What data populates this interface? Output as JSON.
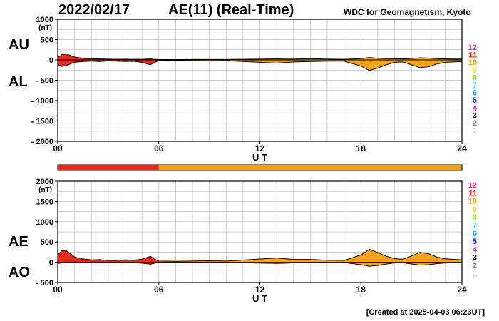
{
  "header": {
    "date": "2022/02/17",
    "title": "AE(11) (Real-Time)",
    "source": "WDC for Geomagnetism, Kyoto"
  },
  "footer": {
    "created": "[Created at 2025-04-03 06:23UT]"
  },
  "colors": {
    "red": "#e8291c",
    "orange": "#f7a21b",
    "legend": [
      "#e8368c",
      "#e8291c",
      "#f7a21b",
      "#f2e33a",
      "#9fe83a",
      "#3ae8c8",
      "#3aa0e8",
      "#1c2ad0",
      "#c23ae8",
      "#000000",
      "#888888",
      "#c8c8c8"
    ]
  },
  "legend_levels": [
    "12",
    "11",
    "10",
    "9",
    "8",
    "7",
    "6",
    "5",
    "4",
    "3",
    "2",
    "1"
  ],
  "status_bar": {
    "segments": [
      {
        "from": 0,
        "to": 6,
        "level": 11
      },
      {
        "from": 6,
        "to": 24,
        "level": 10
      }
    ]
  },
  "chart_data": [
    {
      "type": "area",
      "name": "AU/AL panel",
      "labels_left": [
        "AU",
        "AL"
      ],
      "ylabel": "(nT)",
      "xlabel": "U T",
      "ylim": [
        -2000,
        1000
      ],
      "yticks": [
        1000,
        500,
        0,
        -500,
        -1000,
        -1500,
        -2000
      ],
      "ytick_labels": [
        "1000",
        "500",
        "0",
        "- 500",
        "- 1000",
        "- 1500",
        "- 2000"
      ],
      "xlim": [
        0,
        24
      ],
      "xticks": [
        0,
        6,
        12,
        18,
        24
      ],
      "xtick_labels": [
        "00",
        "06",
        "12",
        "18",
        "24"
      ],
      "grid": true,
      "series": [
        {
          "name": "AU",
          "x": [
            0,
            0.25,
            0.5,
            0.75,
            1,
            1.5,
            2,
            2.5,
            3,
            3.5,
            4,
            4.5,
            5,
            5.5,
            5.75,
            6,
            7,
            8,
            9,
            10,
            11,
            12,
            13,
            14,
            15,
            16,
            17,
            18,
            18.5,
            19,
            19.5,
            20,
            20.5,
            21,
            21.5,
            22,
            22.5,
            23,
            24
          ],
          "y": [
            60,
            130,
            150,
            110,
            70,
            40,
            30,
            25,
            20,
            15,
            18,
            15,
            15,
            25,
            15,
            10,
            8,
            10,
            12,
            10,
            15,
            20,
            25,
            20,
            30,
            20,
            15,
            30,
            60,
            40,
            30,
            30,
            25,
            35,
            50,
            45,
            30,
            25,
            20
          ]
        },
        {
          "name": "AL",
          "x": [
            0,
            0.25,
            0.5,
            0.75,
            1,
            1.5,
            2,
            2.5,
            3,
            3.5,
            4,
            4.5,
            5,
            5.5,
            5.75,
            6,
            7,
            8,
            9,
            10,
            11,
            12,
            13,
            14,
            15,
            16,
            17,
            18,
            18.5,
            19,
            19.5,
            20,
            20.5,
            21,
            21.5,
            22,
            22.5,
            23,
            24
          ],
          "y": [
            -120,
            -160,
            -140,
            -100,
            -60,
            -40,
            -30,
            -40,
            -25,
            -30,
            -40,
            -35,
            -60,
            -120,
            -60,
            -20,
            -15,
            -20,
            -25,
            -20,
            -40,
            -60,
            -80,
            -50,
            -40,
            -30,
            -30,
            -150,
            -260,
            -200,
            -120,
            -60,
            -50,
            -120,
            -190,
            -170,
            -100,
            -60,
            -40
          ]
        }
      ]
    },
    {
      "type": "area",
      "name": "AE/AO panel",
      "labels_left": [
        "AE",
        "AO"
      ],
      "ylabel": "(nT)",
      "xlabel": "U T",
      "ylim": [
        -500,
        2000
      ],
      "yticks": [
        2000,
        1500,
        1000,
        500,
        0,
        -500
      ],
      "ytick_labels": [
        "2000",
        "1500",
        "1000",
        "500",
        "0",
        "- 500"
      ],
      "xlim": [
        0,
        24
      ],
      "xticks": [
        0,
        6,
        12,
        18,
        24
      ],
      "xtick_labels": [
        "00",
        "06",
        "12",
        "18",
        "24"
      ],
      "grid": true,
      "series": [
        {
          "name": "AE",
          "x": [
            0,
            0.25,
            0.5,
            0.75,
            1,
            1.5,
            2,
            2.5,
            3,
            3.5,
            4,
            4.5,
            5,
            5.5,
            5.75,
            6,
            7,
            8,
            9,
            10,
            11,
            12,
            13,
            14,
            15,
            16,
            17,
            18,
            18.5,
            19,
            19.5,
            20,
            20.5,
            21,
            21.5,
            22,
            22.5,
            23,
            24
          ],
          "y": [
            180,
            290,
            290,
            210,
            130,
            80,
            60,
            65,
            45,
            45,
            58,
            50,
            75,
            145,
            75,
            30,
            23,
            30,
            37,
            30,
            55,
            80,
            105,
            70,
            70,
            50,
            45,
            180,
            320,
            240,
            150,
            90,
            75,
            155,
            240,
            215,
            130,
            85,
            60
          ]
        },
        {
          "name": "AO",
          "x": [
            0,
            0.25,
            0.5,
            0.75,
            1,
            1.5,
            2,
            2.5,
            3,
            3.5,
            4,
            4.5,
            5,
            5.5,
            5.75,
            6,
            7,
            8,
            9,
            10,
            11,
            12,
            13,
            14,
            15,
            16,
            17,
            18,
            18.5,
            19,
            19.5,
            20,
            20.5,
            21,
            21.5,
            22,
            22.5,
            23,
            24
          ],
          "y": [
            -30,
            -15,
            5,
            5,
            5,
            0,
            0,
            -8,
            -3,
            -8,
            -11,
            -10,
            -23,
            -48,
            -23,
            -5,
            -4,
            -5,
            -7,
            -5,
            -13,
            -20,
            -28,
            -15,
            -5,
            -5,
            -8,
            -60,
            -100,
            -80,
            -45,
            -15,
            -13,
            -43,
            -70,
            -63,
            -35,
            -18,
            -10
          ]
        }
      ]
    }
  ]
}
